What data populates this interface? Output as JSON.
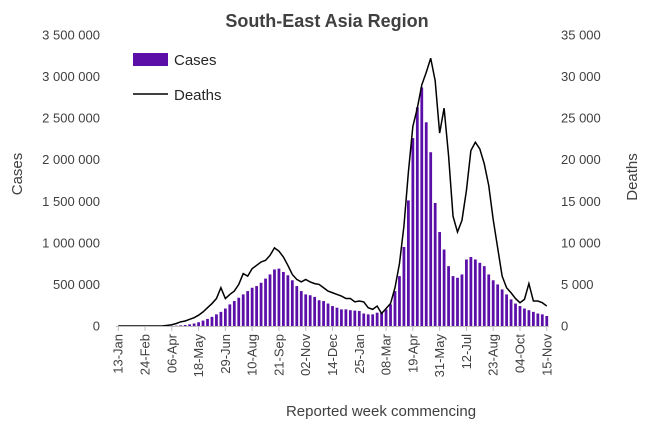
{
  "colors": {
    "bar": "#5B0FA8",
    "line": "#000000",
    "axis": "#BFBFBF",
    "text": "#404040"
  },
  "chart_data": {
    "type": "bar",
    "title": "South-East Asia Region",
    "xlabel": "Reported week commencing",
    "ylabel": "Cases",
    "y2label": "Deaths",
    "ylim": [
      0,
      3500000
    ],
    "y2lim": [
      0,
      35000
    ],
    "yticks": [
      "0",
      "500 000",
      "1 000 000",
      "1 500 000",
      "2 000 000",
      "2 500 000",
      "3 000 000",
      "3 500 000"
    ],
    "y2ticks": [
      "0",
      "5 000",
      "10 000",
      "15 000",
      "20 000",
      "25 000",
      "30 000",
      "35 000"
    ],
    "grid": false,
    "legend_position": "top-left",
    "xtick_labels": [
      {
        "week": 1,
        "label": "13-Jan"
      },
      {
        "week": 7,
        "label": "24-Feb"
      },
      {
        "week": 13,
        "label": "06-Apr"
      },
      {
        "week": 19,
        "label": "18-May"
      },
      {
        "week": 25,
        "label": "29-Jun"
      },
      {
        "week": 31,
        "label": "10-Aug"
      },
      {
        "week": 37,
        "label": "21-Sep"
      },
      {
        "week": 43,
        "label": "02-Nov"
      },
      {
        "week": 49,
        "label": "14-Dec"
      },
      {
        "week": 55,
        "label": "25-Jan"
      },
      {
        "week": 61,
        "label": "08-Mar"
      },
      {
        "week": 67,
        "label": "19-Apr"
      },
      {
        "week": 73,
        "label": "31-May"
      },
      {
        "week": 79,
        "label": "12-Jul"
      },
      {
        "week": 85,
        "label": "23-Aug"
      },
      {
        "week": 91,
        "label": "04-Oct"
      },
      {
        "week": 97,
        "label": "15-Nov"
      }
    ],
    "series": [
      {
        "name": "Cases",
        "axis": "left",
        "type": "bar",
        "values": [
          0,
          0,
          0,
          0,
          0,
          0,
          0,
          0,
          0,
          0,
          0,
          0,
          2000,
          4000,
          8000,
          12000,
          20000,
          30000,
          45000,
          65000,
          85000,
          110000,
          140000,
          170000,
          210000,
          260000,
          300000,
          340000,
          380000,
          420000,
          460000,
          480000,
          520000,
          570000,
          620000,
          680000,
          690000,
          650000,
          610000,
          550000,
          480000,
          420000,
          380000,
          370000,
          350000,
          310000,
          300000,
          270000,
          240000,
          220000,
          200000,
          200000,
          190000,
          185000,
          180000,
          150000,
          140000,
          140000,
          160000,
          170000,
          200000,
          260000,
          420000,
          600000,
          950000,
          1510000,
          2260000,
          2630000,
          2870000,
          2450000,
          2090000,
          1480000,
          1130000,
          920000,
          720000,
          600000,
          580000,
          620000,
          800000,
          830000,
          800000,
          760000,
          720000,
          620000,
          550000,
          500000,
          440000,
          380000,
          320000,
          270000,
          240000,
          210000,
          190000,
          170000,
          150000,
          140000,
          120000
        ]
      },
      {
        "name": "Deaths",
        "axis": "right",
        "type": "line",
        "values": [
          0,
          0,
          0,
          0,
          0,
          0,
          0,
          0,
          0,
          0,
          20,
          80,
          150,
          300,
          500,
          600,
          800,
          1000,
          1300,
          1700,
          2200,
          2700,
          3300,
          4600,
          3300,
          3800,
          4200,
          5000,
          6300,
          6000,
          6900,
          7300,
          7700,
          7900,
          8500,
          9400,
          9000,
          8300,
          7300,
          6200,
          5600,
          5300,
          5600,
          5300,
          5100,
          5000,
          4600,
          4200,
          4000,
          3800,
          3600,
          3300,
          3300,
          2900,
          3000,
          2900,
          2200,
          2000,
          2400,
          1500,
          2100,
          2700,
          4600,
          7500,
          12000,
          18500,
          24000,
          26200,
          29000,
          30500,
          32200,
          29500,
          23200,
          26200,
          20500,
          13200,
          11300,
          12700,
          16300,
          21100,
          22100,
          21300,
          19500,
          16900,
          12800,
          9400,
          6000,
          4600,
          4000,
          3300,
          2800,
          3200,
          5100,
          3000,
          3000,
          2800,
          2400
        ]
      }
    ]
  }
}
